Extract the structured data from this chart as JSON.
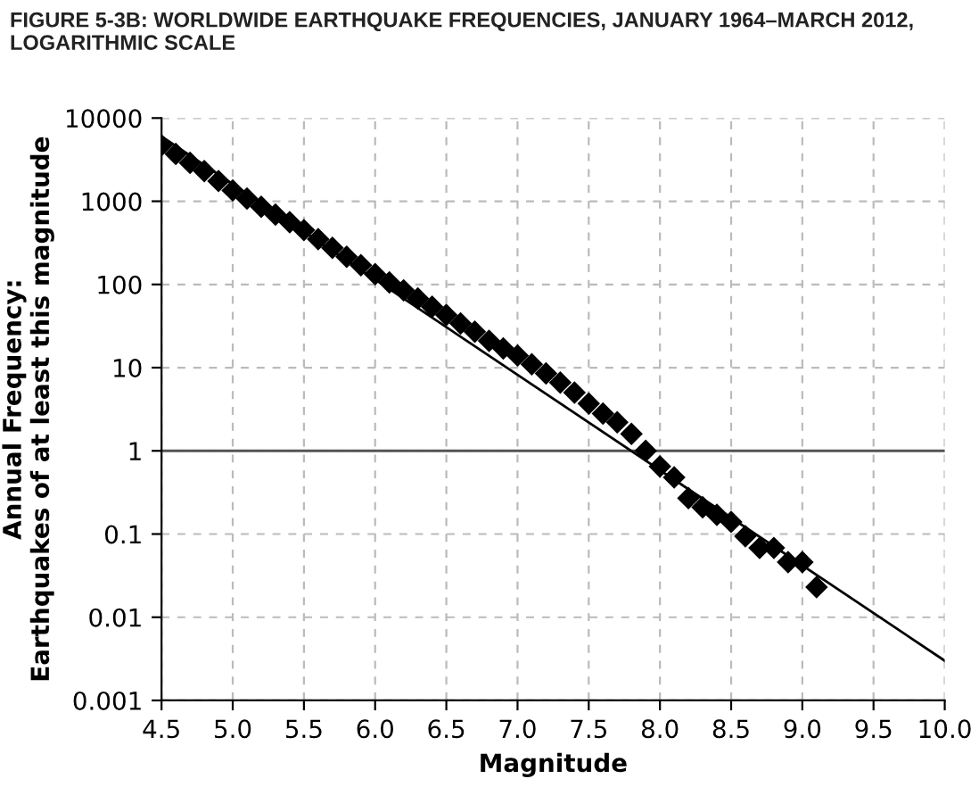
{
  "chart_data": {
    "type": "scatter",
    "title": "FIGURE 5-3B: WORLDWIDE EARTHQUAKE FREQUENCIES, JANUARY 1964–MARCH 2012,\nLOGARITHMIC SCALE",
    "xlabel": "Magnitude",
    "ylabel": "Annual Frequency:\nEarthquakes of at least this magnitude",
    "series": [
      {
        "color": "#000000",
        "marker": "diamond",
        "x": [
          4.5,
          4.6,
          4.7,
          4.8,
          4.9,
          5.0,
          5.1,
          5.2,
          5.3,
          5.4,
          5.5,
          5.6,
          5.7,
          5.8,
          5.9,
          6.0,
          6.1,
          6.2,
          6.3,
          6.4,
          6.5,
          6.6,
          6.7,
          6.8,
          6.9,
          7.0,
          7.1,
          7.2,
          7.3,
          7.4,
          7.5,
          7.6,
          7.7,
          7.8,
          7.9,
          8.0,
          8.1,
          8.2,
          8.3,
          8.4,
          8.5,
          8.6,
          8.7,
          8.8,
          8.9,
          9.0,
          9.1
        ],
        "values": [
          4700,
          3700,
          2900,
          2300,
          1750,
          1350,
          1080,
          860,
          690,
          560,
          450,
          350,
          275,
          215,
          170,
          133,
          106,
          85,
          68,
          54,
          43,
          34,
          27,
          21,
          17,
          14,
          11,
          8.5,
          6.6,
          5,
          3.7,
          2.8,
          2.2,
          1.6,
          1.0,
          0.65,
          0.48,
          0.27,
          0.21,
          0.17,
          0.14,
          0.094,
          0.068,
          0.068,
          0.046,
          0.046,
          0.023
        ]
      },
      {
        "type": "line",
        "color": "#000000",
        "line_style": "solid",
        "x": [
          4.5,
          10.0
        ],
        "values": [
          6000,
          0.003
        ]
      }
    ],
    "xlim": [
      4.5,
      10.0
    ],
    "xticks": [
      4.5,
      {
        "value": 5.0,
        "label": "5.0"
      },
      5.5,
      {
        "value": 6.0,
        "label": "6.0"
      },
      6.5,
      {
        "value": 7.0,
        "label": "7.0"
      },
      7.5,
      {
        "value": 8.0,
        "label": "8.0"
      },
      8.5,
      {
        "value": 9.0,
        "label": "9.0"
      },
      9.5,
      {
        "value": 10.0,
        "label": "10.0"
      }
    ],
    "ylim": [
      0.001,
      10000
    ],
    "log": "y",
    "yticks": [
      {
        "value": 0.001,
        "label": "0.001"
      },
      {
        "value": 0.01,
        "label": "0.01"
      },
      0.1,
      1,
      10,
      100,
      1000,
      10000
    ],
    "ref_lines": [
      {
        "axis": "y",
        "value": 1,
        "color": "#555555"
      }
    ],
    "grid": true
  }
}
